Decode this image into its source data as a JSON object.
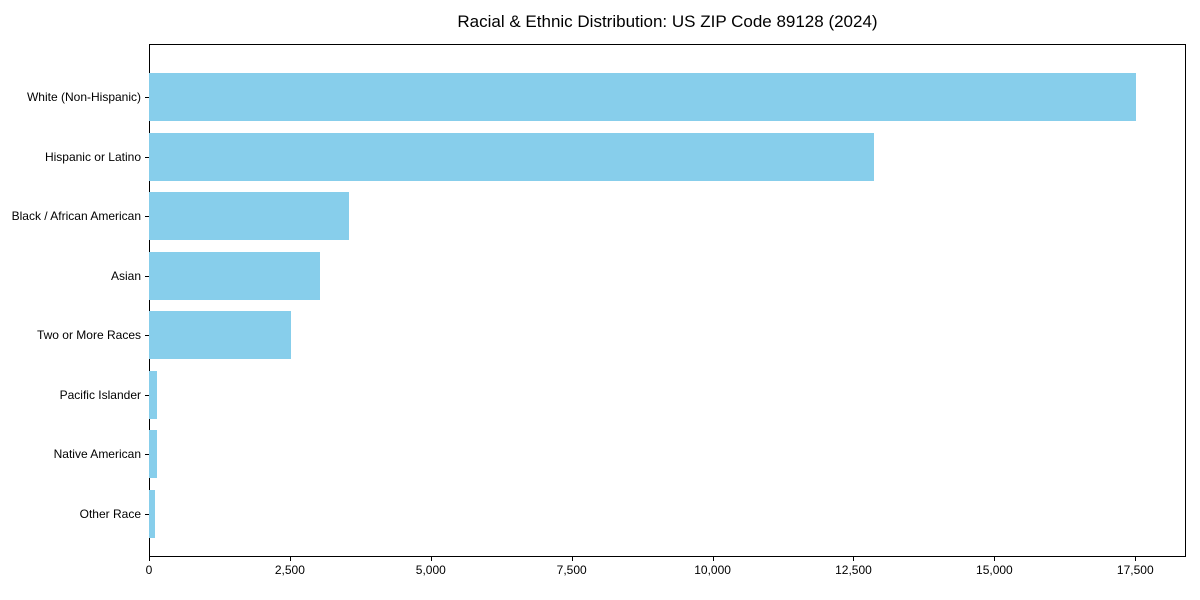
{
  "chart_data": {
    "type": "bar",
    "orientation": "horizontal",
    "title": "Racial & Ethnic Distribution: US ZIP Code 89128 (2024)",
    "categories": [
      "White (Non-Hispanic)",
      "Hispanic or Latino",
      "Black / African American",
      "Asian",
      "Two or More Races",
      "Pacific Islander",
      "Native American",
      "Other Race"
    ],
    "values": [
      17520,
      12870,
      3550,
      3040,
      2520,
      150,
      145,
      110
    ],
    "xlabel": "",
    "ylabel": "",
    "xlim": [
      0,
      18400
    ],
    "xticks": [
      0,
      2500,
      5000,
      7500,
      10000,
      12500,
      15000,
      17500
    ],
    "xtick_labels": [
      "0",
      "2,500",
      "5,000",
      "7,500",
      "10,000",
      "12,500",
      "15,000",
      "17,500"
    ],
    "bar_color": "#87CEEB",
    "axis_color": "#000000",
    "text_color": "#000000",
    "background_color": "#ffffff",
    "grid": false,
    "legend": null
  }
}
